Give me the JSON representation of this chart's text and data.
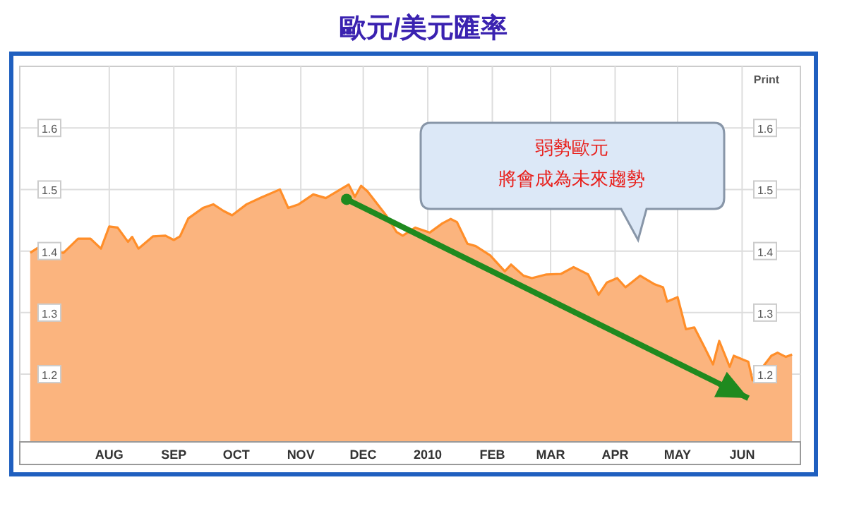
{
  "chart_data": {
    "type": "area",
    "title": "歐元/美元匯率",
    "x": [
      "2009-06-24",
      "2009-06-29",
      "2009-07-01",
      "2009-07-10",
      "2009-07-17",
      "2009-07-23",
      "2009-07-28",
      "2009-08-01",
      "2009-08-05",
      "2009-08-10",
      "2009-08-12",
      "2009-08-15",
      "2009-08-22",
      "2009-08-28",
      "2009-09-01",
      "2009-09-04",
      "2009-09-08",
      "2009-09-15",
      "2009-09-20",
      "2009-09-25",
      "2009-09-29",
      "2009-10-06",
      "2009-10-13",
      "2009-10-22",
      "2009-10-26",
      "2009-10-31",
      "2009-11-07",
      "2009-11-13",
      "2009-11-24",
      "2009-11-27",
      "2009-11-30",
      "2009-12-03",
      "2009-12-12",
      "2009-12-17",
      "2009-12-20",
      "2009-12-26",
      "2010-01-02",
      "2010-01-08",
      "2010-01-12",
      "2010-01-15",
      "2010-01-20",
      "2010-01-24",
      "2010-01-31",
      "2010-02-07",
      "2010-02-10",
      "2010-02-16",
      "2010-02-20",
      "2010-02-27",
      "2010-03-06",
      "2010-03-12",
      "2010-03-19",
      "2010-03-24",
      "2010-03-28",
      "2010-04-02",
      "2010-04-06",
      "2010-04-13",
      "2010-04-20",
      "2010-04-24",
      "2010-04-26",
      "2010-05-01",
      "2010-05-05",
      "2010-05-09",
      "2010-05-14",
      "2010-05-18",
      "2010-05-21",
      "2010-05-26",
      "2010-05-28",
      "2010-06-04",
      "2010-06-06",
      "2010-06-15",
      "2010-06-18",
      "2010-06-22",
      "2010-06-25"
    ],
    "series": [
      {
        "color": "#fbb47e",
        "values": [
          1.397,
          1.408,
          1.401,
          1.397,
          1.42,
          1.42,
          1.404,
          1.44,
          1.438,
          1.415,
          1.423,
          1.404,
          1.424,
          1.425,
          1.418,
          1.424,
          1.453,
          1.47,
          1.476,
          1.465,
          1.458,
          1.476,
          1.487,
          1.5,
          1.47,
          1.476,
          1.492,
          1.486,
          1.508,
          1.488,
          1.506,
          1.497,
          1.458,
          1.431,
          1.425,
          1.438,
          1.43,
          1.445,
          1.452,
          1.447,
          1.412,
          1.408,
          1.393,
          1.367,
          1.378,
          1.36,
          1.356,
          1.362,
          1.363,
          1.374,
          1.362,
          1.329,
          1.349,
          1.356,
          1.341,
          1.36,
          1.346,
          1.341,
          1.318,
          1.325,
          1.273,
          1.276,
          1.243,
          1.216,
          1.254,
          1.212,
          1.23,
          1.22,
          1.19,
          1.23,
          1.235,
          1.228,
          1.232
        ]
      },
      {
        "type": "line",
        "color": "#1f8a1f",
        "x": [
          "2009-11-23",
          "2010-06-04"
        ],
        "values": [
          1.484,
          1.161
        ]
      }
    ],
    "xlim": [
      "2009-06-19",
      "2010-06-29"
    ],
    "xticks": [
      {
        "value": "2009-08-01",
        "label": "AUG"
      },
      {
        "value": "2009-09-01",
        "label": "SEP"
      },
      {
        "value": "2009-10-01",
        "label": "OCT"
      },
      {
        "value": "2009-11-01",
        "label": "NOV"
      },
      {
        "value": "2009-12-01",
        "label": "DEC"
      },
      {
        "value": "2010-01-01",
        "label": "2010"
      },
      {
        "value": "2010-02-01",
        "label": "FEB"
      },
      {
        "value": "2010-03-01",
        "label": "MAR"
      },
      {
        "value": "2010-04-01",
        "label": "APR"
      },
      {
        "value": "2010-05-01",
        "label": "MAY"
      },
      {
        "value": "2010-06-01",
        "label": "JUN"
      }
    ],
    "ylim": [
      1.09,
      1.7
    ],
    "yticks": [
      1.2,
      1.3,
      1.4,
      1.5,
      1.6
    ],
    "y2lim": [
      1.09,
      1.7
    ],
    "y2ticks": [
      1.2,
      1.3,
      1.4,
      1.5,
      1.6
    ],
    "grid": true,
    "annotations": [
      "弱勢歐元",
      "將會成為未來趨勢",
      "Print"
    ]
  }
}
